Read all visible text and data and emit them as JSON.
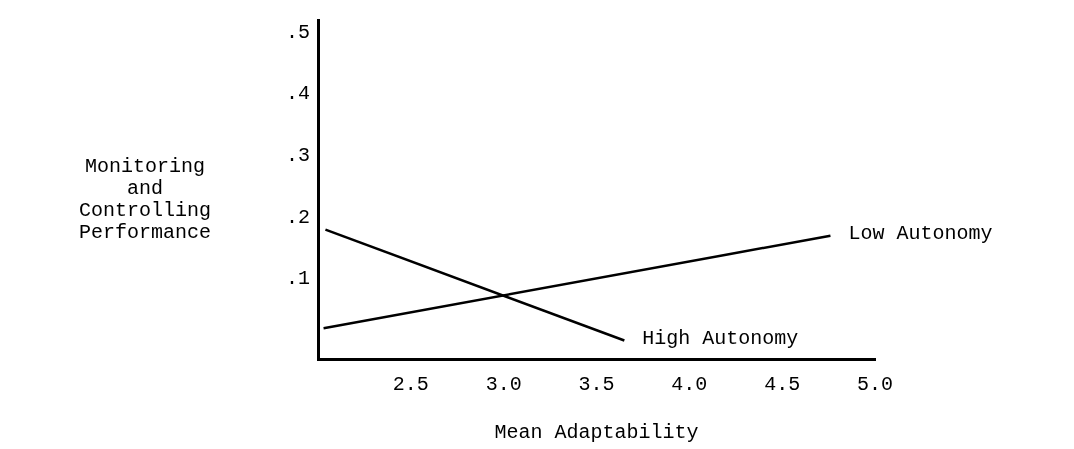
{
  "chart_data": {
    "type": "line",
    "xlabel": "Mean Adaptability",
    "ylabel": "Monitoring\nand\nControlling\nPerformance",
    "series": [
      {
        "name": "High Autonomy",
        "color": "#000000",
        "x": [
          2.04,
          3.65
        ],
        "values": [
          0.18,
          0.0
        ]
      },
      {
        "name": "Low Autonomy",
        "color": "#000000",
        "x": [
          2.03,
          4.76
        ],
        "values": [
          0.02,
          0.17
        ]
      }
    ],
    "xlim": [
      2.0,
      5.0
    ],
    "ylim": [
      -0.03,
      0.52
    ],
    "xticks": [
      2.5,
      {
        "value": 3.0,
        "label": "3.0"
      },
      3.5,
      {
        "value": 4.0,
        "label": "4.0"
      },
      4.5,
      {
        "value": 5.0,
        "label": "5.0"
      }
    ],
    "yticks": [
      {
        "value": 0.1,
        "label": ".1"
      },
      {
        "value": 0.2,
        "label": ".2"
      },
      {
        "value": 0.3,
        "label": ".3"
      },
      {
        "value": 0.4,
        "label": ".4"
      },
      {
        "value": 0.5,
        "label": ".5"
      }
    ],
    "grid": false,
    "legend": false,
    "marker": "none",
    "line_style": "solid"
  }
}
